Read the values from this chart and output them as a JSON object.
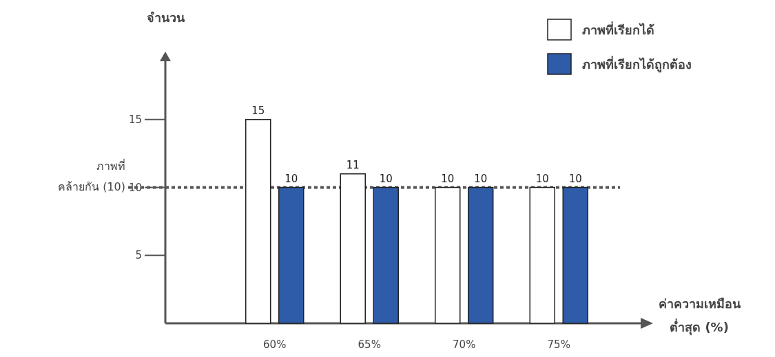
{
  "chart_data": {
    "type": "bar",
    "ylabel": "จำนวน",
    "xlabel": "ค่าความเหมือน ต่ำสุด (%)",
    "categories": [
      "60%",
      "65%",
      "70%",
      "75%"
    ],
    "series": [
      {
        "name": "ภาพที่เรียกได้",
        "color": "#ffffff",
        "values": [
          15,
          11,
          10,
          10
        ]
      },
      {
        "name": "ภาพที่เรียกได้ถูกต้อง",
        "color": "#2e5ca8",
        "values": [
          10,
          10,
          10,
          10
        ]
      }
    ],
    "ylim": [
      0,
      20
    ],
    "yticks": [
      5,
      10,
      15
    ],
    "ref_lines": [
      {
        "axis": "y",
        "value": 10,
        "label": "ภาพที่\nคล้ายกัน (10)",
        "color": "#555555",
        "line_style": "dotted"
      }
    ],
    "data_labels": true,
    "grid": false,
    "legend": "top right"
  }
}
